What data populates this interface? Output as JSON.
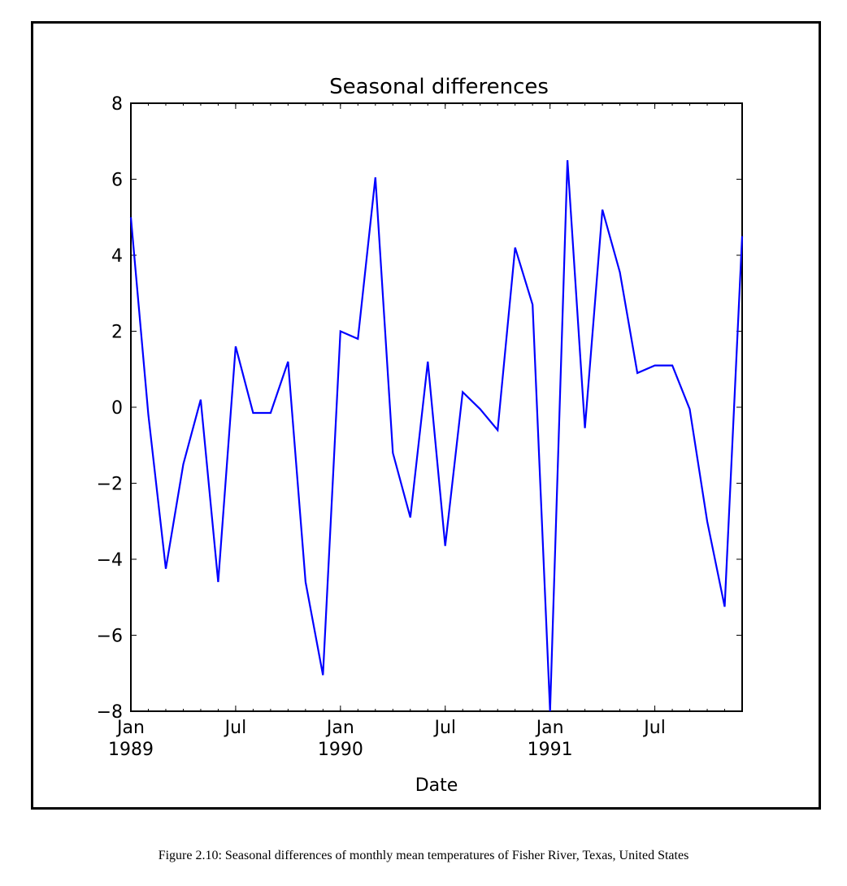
{
  "caption": "Figure 2.10: Seasonal differences of monthly mean temperatures of Fisher River, Texas, United States",
  "chart_data": {
    "type": "line",
    "title": "Seasonal differences",
    "xlabel": "Date",
    "ylabel": "",
    "ylim": [
      -8,
      8
    ],
    "yticks": [
      8,
      6,
      4,
      2,
      0,
      -2,
      -4,
      -6,
      -8
    ],
    "ytick_labels": [
      "8",
      "6",
      "4",
      "2",
      "0",
      "−2",
      "−4",
      "−6",
      "−8"
    ],
    "xlim": [
      "1989-01",
      "1991-12"
    ],
    "xticks": [
      {
        "x": "1989-01",
        "label": "Jan",
        "year": "1989"
      },
      {
        "x": "1989-07",
        "label": "Jul",
        "year": ""
      },
      {
        "x": "1990-01",
        "label": "Jan",
        "year": "1990"
      },
      {
        "x": "1990-07",
        "label": "Jul",
        "year": ""
      },
      {
        "x": "1991-01",
        "label": "Jan",
        "year": "1991"
      },
      {
        "x": "1991-07",
        "label": "Jul",
        "year": ""
      }
    ],
    "grid": false,
    "legend": "none",
    "series": [
      {
        "color": "#0000ff",
        "x": [
          "1989-01",
          "1989-02",
          "1989-03",
          "1989-04",
          "1989-05",
          "1989-06",
          "1989-07",
          "1989-08",
          "1989-09",
          "1989-10",
          "1989-11",
          "1989-12",
          "1990-01",
          "1990-02",
          "1990-03",
          "1990-04",
          "1990-05",
          "1990-06",
          "1990-07",
          "1990-08",
          "1990-09",
          "1990-10",
          "1990-11",
          "1990-12",
          "1991-01",
          "1991-02",
          "1991-03",
          "1991-04",
          "1991-05",
          "1991-06",
          "1991-07",
          "1991-08",
          "1991-09",
          "1991-10",
          "1991-11",
          "1991-12"
        ],
        "y": [
          5.0,
          -0.2,
          -4.25,
          -1.5,
          0.2,
          -4.6,
          1.6,
          -0.15,
          -0.15,
          1.2,
          -4.6,
          -7.05,
          2.0,
          1.8,
          6.05,
          -1.2,
          -2.9,
          1.2,
          -3.65,
          0.4,
          -0.05,
          -0.6,
          4.2,
          2.7,
          -8.0,
          6.5,
          -0.55,
          5.2,
          3.55,
          0.9,
          1.1,
          1.1,
          -0.05,
          -3.0,
          -5.25,
          4.5
        ]
      }
    ]
  }
}
